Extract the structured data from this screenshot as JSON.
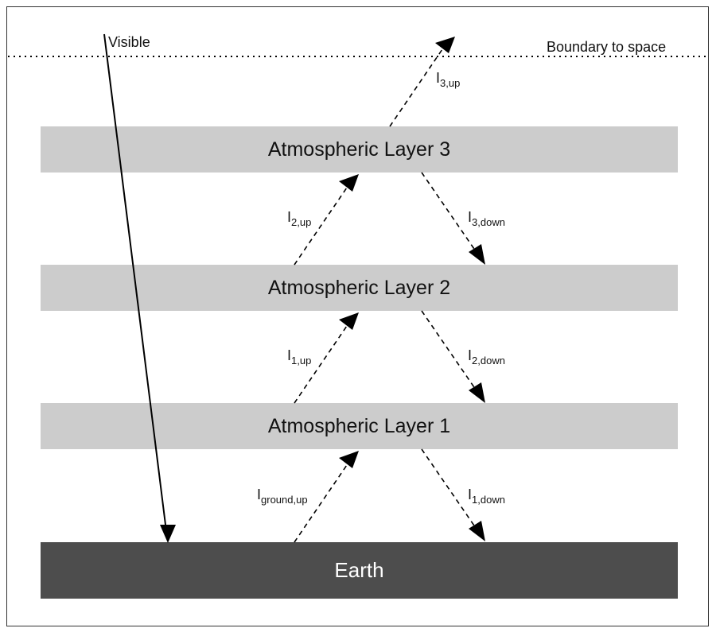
{
  "diagram": {
    "boundary_label": "Boundary to space",
    "visible_label": "Visible",
    "layers": [
      {
        "label": "Atmospheric Layer 3"
      },
      {
        "label": "Atmospheric Layer 2"
      },
      {
        "label": "Atmospheric Layer 1"
      }
    ],
    "earth_label": "Earth",
    "fluxes": {
      "i3_up": {
        "main": "I",
        "sub": "3,up"
      },
      "i2_up": {
        "main": "I",
        "sub": "2,up"
      },
      "i3_down": {
        "main": "I",
        "sub": "3,down"
      },
      "i1_up": {
        "main": "I",
        "sub": "1,up"
      },
      "i2_down": {
        "main": "I",
        "sub": "2,down"
      },
      "ground_up": {
        "main": "I",
        "sub": "ground,up"
      },
      "i1_down": {
        "main": "I",
        "sub": "1,down"
      }
    },
    "colors": {
      "layer_fill": "#cccccc",
      "earth_fill": "#4d4d4d",
      "arrow": "#000000"
    }
  }
}
